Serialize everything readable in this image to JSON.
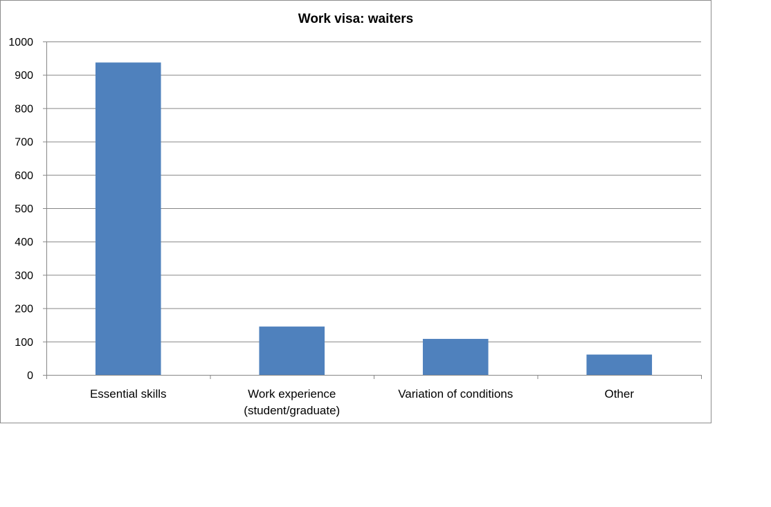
{
  "chart_data": {
    "type": "bar",
    "title": "Work visa: waiters",
    "categories": [
      [
        "Essential skills"
      ],
      [
        "Work experience",
        "(student/graduate)"
      ],
      [
        "Variation of conditions"
      ],
      [
        "Other"
      ]
    ],
    "values": [
      937,
      145,
      108,
      61
    ],
    "ylim": [
      0,
      1000
    ],
    "yticks": [
      0,
      100,
      200,
      300,
      400,
      500,
      600,
      700,
      800,
      900,
      1000
    ],
    "grid": true,
    "legend": "none",
    "bar_color": "#4f81bd",
    "grid_color": "#868686"
  }
}
